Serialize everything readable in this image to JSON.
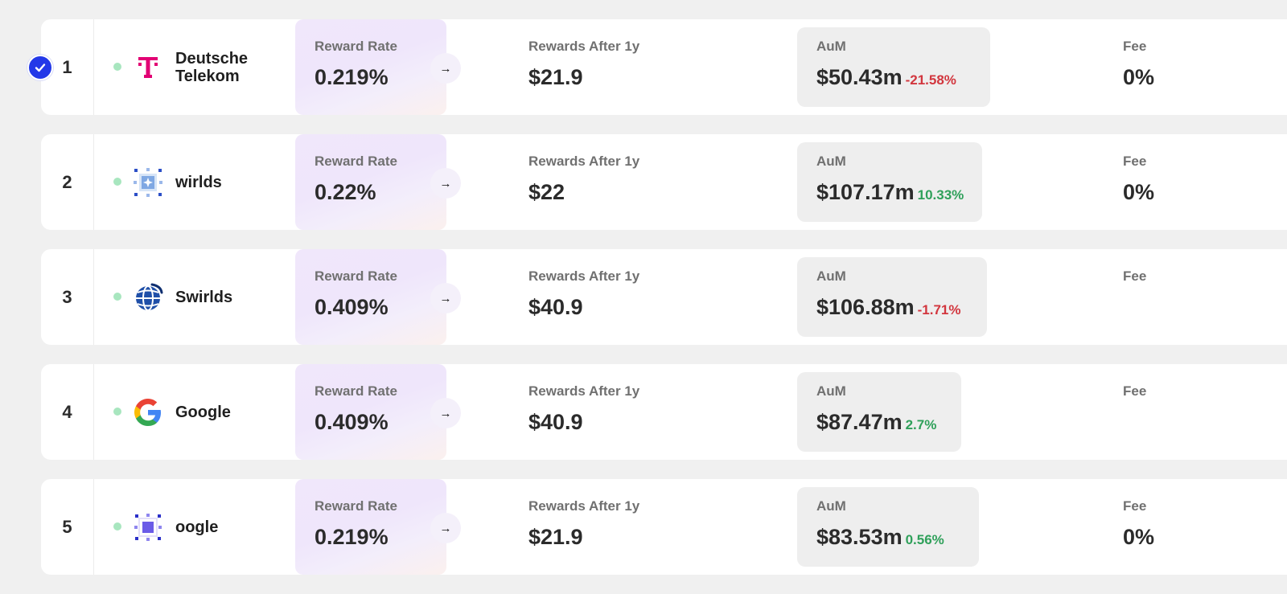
{
  "labels": {
    "reward_rate": "Reward Rate",
    "rewards_after": "Rewards After 1y",
    "aum": "AuM",
    "fee": "Fee"
  },
  "colors": {
    "accent": "#2338e8",
    "negative": "#d2363e",
    "positive": "#2fa05a",
    "status_active": "#a8e6bf"
  },
  "rows": [
    {
      "rank": "1",
      "name": "Deutsche Telekom",
      "icon": "telekom-logo-icon",
      "reward_rate": "0.219%",
      "rewards_after": "$21.9",
      "aum": "$50.43m",
      "aum_change": "-21.58%",
      "fee": "0%",
      "selected": true
    },
    {
      "rank": "2",
      "name": "wirlds",
      "icon": "wirlds-logo-icon",
      "reward_rate": "0.22%",
      "rewards_after": "$22",
      "aum": "$107.17m",
      "aum_change": "10.33%",
      "fee": "0%",
      "selected": false
    },
    {
      "rank": "3",
      "name": "Swirlds",
      "icon": "swirlds-globe-icon",
      "reward_rate": "0.409%",
      "rewards_after": "$40.9",
      "aum": "$106.88m",
      "aum_change": "-1.71%",
      "fee": "",
      "selected": false
    },
    {
      "rank": "4",
      "name": "Google",
      "icon": "google-logo-icon",
      "reward_rate": "0.409%",
      "rewards_after": "$40.9",
      "aum": "$87.47m",
      "aum_change": "2.7%",
      "fee": "",
      "selected": false
    },
    {
      "rank": "5",
      "name": "oogle",
      "icon": "oogle-logo-icon",
      "reward_rate": "0.219%",
      "rewards_after": "$21.9",
      "aum": "$83.53m",
      "aum_change": "0.56%",
      "fee": "0%",
      "selected": false
    }
  ]
}
